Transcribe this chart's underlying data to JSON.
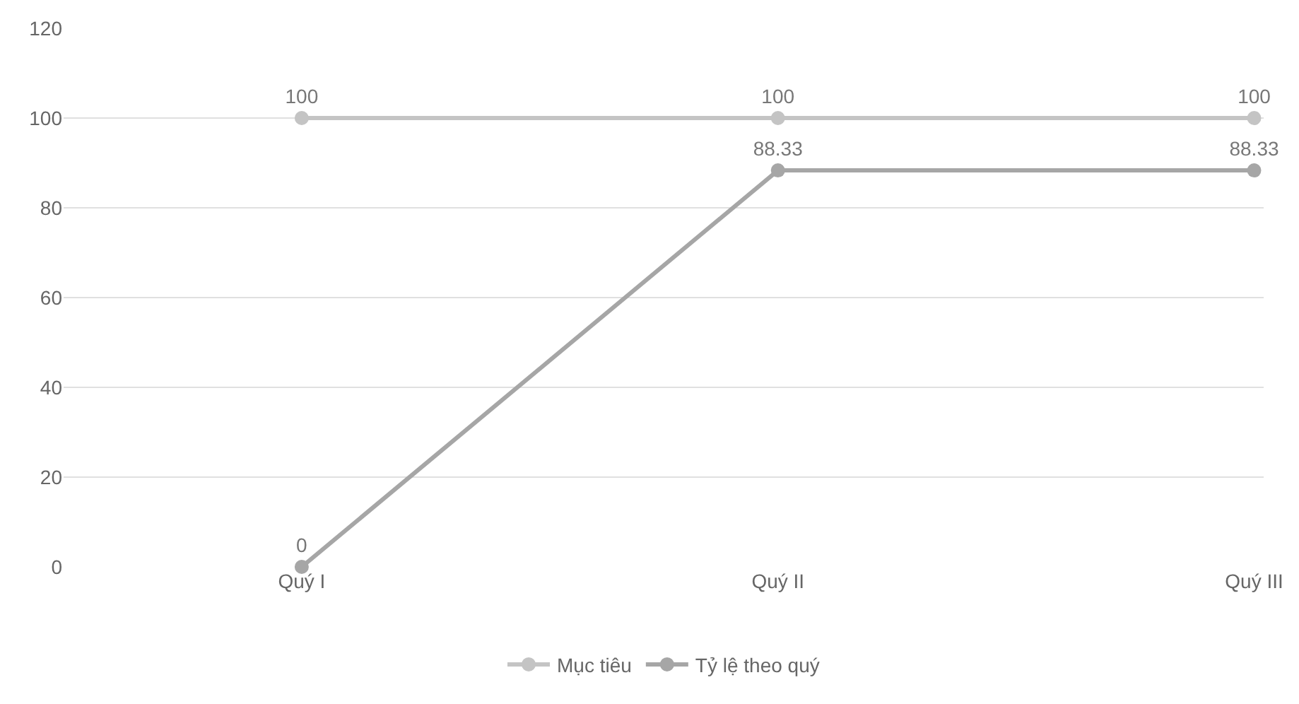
{
  "chart_data": {
    "type": "line",
    "categories": [
      "Quý I",
      "Quý II",
      "Quý III"
    ],
    "series": [
      {
        "name": "Mục tiêu",
        "color": "#c4c4c4",
        "values": [
          100,
          100,
          100
        ]
      },
      {
        "name": "Tỷ lệ theo quý",
        "color": "#a6a6a6",
        "values": [
          0,
          88.33,
          88.33
        ]
      }
    ],
    "ylim": [
      0,
      120
    ],
    "yticks": [
      0,
      20,
      40,
      60,
      80,
      100,
      120
    ],
    "grid": "y",
    "legend": "bottom",
    "marker": "circle",
    "line_style": "solid",
    "data_labels": true
  }
}
